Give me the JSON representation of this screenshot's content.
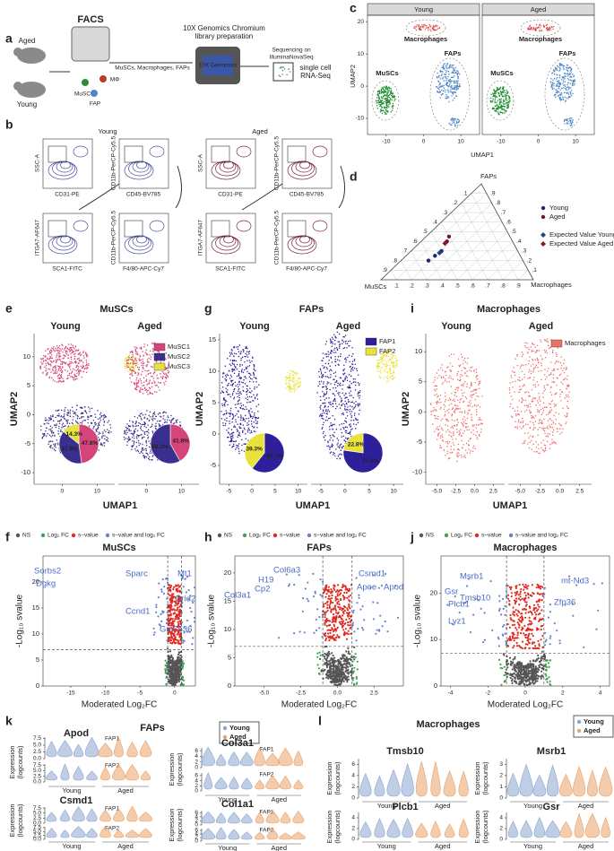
{
  "panel_labels": [
    "a",
    "b",
    "c",
    "d",
    "e",
    "f",
    "g",
    "h",
    "i",
    "j",
    "k",
    "l"
  ],
  "a": {
    "mice": [
      "Aged",
      "Young"
    ],
    "sorter": "FACS",
    "sorted": "MuSCs, Macrophages, FAPs",
    "cells": [
      "MuSC",
      "MΦ",
      "FAP"
    ],
    "chip": "10X Genomics",
    "library": [
      "10X Genomics Chromium",
      "library preparation"
    ],
    "sequencing": [
      "Sequencing on",
      "IlluminaNovaSeq"
    ],
    "output": [
      "single cell",
      "RNA-Seq"
    ]
  },
  "b": {
    "groups": [
      "Young",
      "Aged"
    ],
    "axis_labels": [
      "SSC-A",
      "CD31-PE",
      "CD11b-PerCP-Cy5.5",
      "CD45-BV785",
      "ITGA7-AF647",
      "SCA1-FITC",
      "F4/80-APC-Cy7"
    ],
    "colors": [
      "#4b4f9c",
      "#7b2341"
    ]
  },
  "c": {
    "facets": [
      "Young",
      "Aged"
    ],
    "clusters": [
      {
        "name": "Macrophages",
        "color": "#d8383a"
      },
      {
        "name": "MuSCs",
        "color": "#1c8a2e"
      },
      {
        "name": "FAPs",
        "color": "#4f86c6"
      }
    ],
    "xlabel": "UMAP1",
    "ylabel": "UMAP2",
    "xlim": [
      -15,
      15
    ],
    "xticks": [
      -10,
      0,
      10
    ],
    "ylim": [
      -15,
      22
    ],
    "yticks": [
      -10,
      0,
      10,
      20
    ]
  },
  "d": {
    "type": "ternary",
    "vertices": [
      "FAPs",
      "MuSCs",
      "Macrophages"
    ],
    "vertex_colors": [
      "#8b1a2b",
      "#1c7a2e",
      "#2b2f7a"
    ],
    "ticks": [
      {
        "value": 0.1,
        "label": ".1"
      },
      {
        "value": 0.2,
        "label": ".2"
      },
      {
        "value": 0.3,
        "label": ".3"
      },
      {
        "value": 0.4,
        "label": ".4"
      },
      {
        "value": 0.5,
        "label": ".5"
      },
      {
        "value": 0.6,
        "label": ".6"
      },
      {
        "value": 0.7,
        "label": ".7"
      },
      {
        "value": 0.8,
        "label": ".8"
      },
      {
        "value": 0.9,
        "label": ".9"
      }
    ],
    "series": [
      {
        "name": "Young",
        "color": "#1f2a6b",
        "marker": "circle",
        "values": [
          [
            0.2,
            0.62,
            0.18
          ],
          [
            0.25,
            0.56,
            0.19
          ],
          [
            0.3,
            0.5,
            0.2
          ]
        ]
      },
      {
        "name": "Aged",
        "color": "#6b1a2e",
        "marker": "circle",
        "values": [
          [
            0.45,
            0.4,
            0.15
          ],
          [
            0.4,
            0.43,
            0.17
          ]
        ]
      },
      {
        "name": "Expected Value Young",
        "color": "#2b3f8a",
        "marker": "diamond",
        "values": [
          [
            0.28,
            0.52,
            0.2
          ]
        ]
      },
      {
        "name": "Expected Value Aged",
        "color": "#8b1a2b",
        "marker": "diamond",
        "values": [
          [
            0.38,
            0.45,
            0.17
          ]
        ]
      }
    ]
  },
  "e": {
    "title": "MuSCs",
    "facets": [
      "Young",
      "Aged"
    ],
    "legend": [
      {
        "name": "MuSC1",
        "color": "#d6457a"
      },
      {
        "name": "MuSC2",
        "color": "#3a2f8f"
      },
      {
        "name": "MuSC3",
        "color": "#e8e23a"
      }
    ],
    "pies": [
      {
        "values": [
          47.8,
          37.9,
          14.3
        ],
        "value_labels": [
          "47.8%",
          "37.9%",
          "14.3%"
        ],
        "colors": [
          "#d6457a",
          "#3a2f8f",
          "#e8e23a"
        ]
      },
      {
        "values": [
          41.8,
          58.2
        ],
        "value_labels": [
          "41.8%",
          "58.2%"
        ],
        "colors": [
          "#d6457a",
          "#3a2f8f"
        ]
      }
    ],
    "xlabel": "UMAP1",
    "ylabel": "UMAP2",
    "xlim": [
      -8,
      15
    ],
    "xticks": [
      0,
      10
    ],
    "ylim": [
      -12,
      14
    ],
    "yticks": [
      -10,
      -5,
      0,
      5,
      10
    ]
  },
  "g": {
    "title": "FAPs",
    "facets": [
      "Young",
      "Aged"
    ],
    "legend": [
      {
        "name": "FAP1",
        "color": "#2e1f9a"
      },
      {
        "name": "FAP2",
        "color": "#e8e23a"
      }
    ],
    "pies": [
      {
        "values": [
          60.7,
          39.3
        ],
        "value_labels": [
          "60.7%",
          "39.3%"
        ],
        "colors": [
          "#2e1f9a",
          "#e8e23a"
        ]
      },
      {
        "values": [
          77.2,
          22.8
        ],
        "value_labels": [
          "77.2%",
          "22.8%"
        ],
        "colors": [
          "#2e1f9a",
          "#e8e23a"
        ]
      }
    ],
    "xlabel": "UMAP1",
    "ylabel": "UMAP2",
    "xlim": [
      -7,
      12
    ],
    "xticks": [
      -5,
      0,
      5,
      10
    ],
    "ylim": [
      -8,
      16
    ],
    "yticks": [
      -5,
      0,
      5,
      10,
      15
    ]
  },
  "i": {
    "title": "Macrophages",
    "facets": [
      "Young",
      "Aged"
    ],
    "legend": [
      {
        "name": "Macrophages",
        "color": "#f07068"
      }
    ],
    "xlabel": "UMAP1",
    "ylabel": "UMAP2",
    "xlim": [
      -6.5,
      4
    ],
    "xticks": [
      {
        "value": -5,
        "label": "-5.0"
      },
      {
        "value": -2.5,
        "label": "-2.5"
      },
      {
        "value": 0,
        "label": "0.0"
      },
      {
        "value": 2.5,
        "label": "2.5"
      }
    ],
    "ylim": [
      -12,
      13
    ],
    "yticks": [
      -10,
      -5,
      0,
      5,
      10
    ]
  },
  "volcano_legend": [
    {
      "name": "NS",
      "color": "#555555"
    },
    {
      "name": "Log₂ FC",
      "color": "#3fa34d"
    },
    {
      "name": "s−value",
      "color": "#e0281e"
    },
    {
      "name": "s−value and log₂ FC",
      "color": "#6a80c8"
    }
  ],
  "f": {
    "title": "MuSCs",
    "xlabel": "Moderated Log₂FC",
    "ylabel": "-Log₁₀ svalue",
    "xlim": [
      -19,
      3
    ],
    "xticks": [
      -15,
      -10,
      -5,
      0
    ],
    "ylim": [
      0,
      25
    ],
    "yticks": [
      0,
      5,
      10,
      15,
      20
    ],
    "hline": 7,
    "vlines": [
      -1,
      1
    ],
    "genes": [
      "Sorbs2",
      "Dgkg",
      "Sparc",
      "Mt1",
      "Grid2",
      "Ccnd1",
      "Gm7536"
    ]
  },
  "h": {
    "title": "FAPs",
    "xlabel": "Moderated Log₂FC",
    "ylabel": "-Log₁₀ svalue",
    "xlim": [
      -7,
      4.5
    ],
    "xticks": [
      {
        "value": -5,
        "label": "-5.0"
      },
      {
        "value": -2.5,
        "label": "-2.5"
      },
      {
        "value": 0,
        "label": "0.0"
      },
      {
        "value": 2.5,
        "label": "2.5"
      }
    ],
    "ylim": [
      0,
      23
    ],
    "yticks": [
      0,
      5,
      10,
      15,
      20
    ],
    "hline": 7,
    "vlines": [
      -1,
      1
    ],
    "genes": [
      "H19",
      "Col6a3",
      "Col3a1",
      "Cp2",
      "Csmd1",
      "Apoe",
      "Apod"
    ]
  },
  "j": {
    "title": "Macrophages",
    "xlabel": "Moderated Log₂FC",
    "ylabel": "-Log₁₀ svalue",
    "xlim": [
      -4.5,
      4.5
    ],
    "xticks": [
      -4,
      -2,
      0,
      2,
      4
    ],
    "ylim": [
      0,
      28
    ],
    "yticks": [
      0,
      10,
      20
    ],
    "hline": 7,
    "vlines": [
      -1,
      1
    ],
    "genes": [
      "Msrb1",
      "Gsr",
      "Plcb1",
      "Tmsb10",
      "Lyz1",
      "mt-Nd3",
      "Zfp36"
    ]
  },
  "k": {
    "title": "FAPs",
    "legend": [
      {
        "name": "Young",
        "color": "#8aa6cf"
      },
      {
        "name": "Aged",
        "color": "#e8a36a"
      }
    ],
    "ylabel": [
      "Expression",
      "(logcounts)"
    ],
    "groups": [
      "Young",
      "Aged"
    ],
    "subgroups": [
      "FAP1",
      "FAP2"
    ],
    "genes": [
      {
        "name": "Apod",
        "ylim": [
          0,
          8
        ],
        "yticks": [
          {
            "value": 0,
            "label": "0.0"
          },
          {
            "value": 2.5,
            "label": "2.5"
          },
          {
            "value": 5,
            "label": "5.0"
          },
          {
            "value": 7.5,
            "label": "7.5"
          }
        ]
      },
      {
        "name": "Col3a1",
        "ylim": [
          0,
          7
        ],
        "yticks": [
          0,
          2,
          4,
          6
        ]
      },
      {
        "name": "Csmd1",
        "ylim": [
          0,
          8
        ],
        "yticks": [
          {
            "value": 0,
            "label": "0.0"
          },
          {
            "value": 2.5,
            "label": "2.5"
          },
          {
            "value": 5,
            "label": "5.0"
          },
          {
            "value": 7.5,
            "label": "7.5"
          }
        ]
      },
      {
        "name": "Col1a1",
        "ylim": [
          0,
          7
        ],
        "yticks": [
          0,
          2,
          4,
          6
        ]
      }
    ]
  },
  "l": {
    "title": "Macrophages",
    "legend": [
      {
        "name": "Young",
        "color": "#8aa6cf"
      },
      {
        "name": "Aged",
        "color": "#e8a36a"
      }
    ],
    "ylabel": [
      "Expression",
      "(logcounts)"
    ],
    "groups": [
      "Young",
      "Aged"
    ],
    "genes": [
      {
        "name": "Tmsb10",
        "ylim": [
          0,
          7
        ],
        "yticks": [
          0,
          2,
          4,
          6
        ]
      },
      {
        "name": "Msrb1",
        "ylim": [
          0,
          3.5
        ],
        "yticks": [
          0,
          1,
          2,
          3
        ]
      },
      {
        "name": "Plcb1",
        "ylim": [
          0,
          5
        ],
        "yticks": [
          0,
          2,
          4
        ]
      },
      {
        "name": "Gsr",
        "ylim": [
          0,
          5
        ],
        "yticks": [
          0,
          2,
          4
        ]
      }
    ]
  }
}
